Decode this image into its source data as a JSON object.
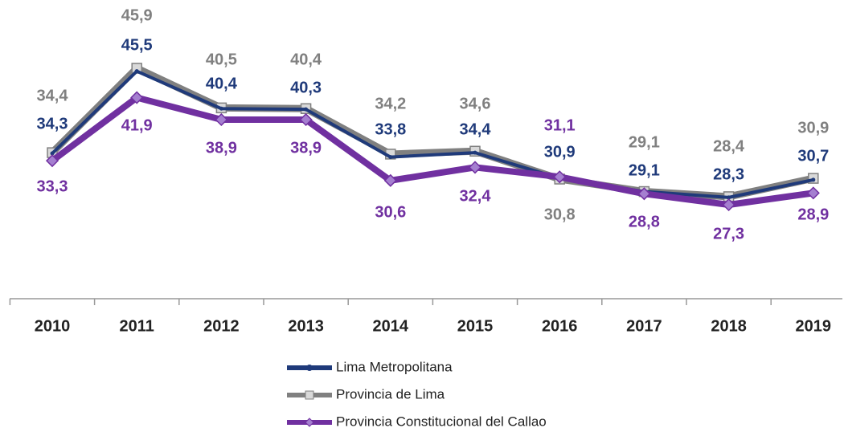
{
  "chart_data": {
    "type": "line",
    "categories": [
      "2010",
      "2011",
      "2012",
      "2013",
      "2014",
      "2015",
      "2016",
      "2017",
      "2018",
      "2019"
    ],
    "series": [
      {
        "name": "Lima Metropolitana",
        "color": "#1f3a7a",
        "values": [
          34.3,
          45.5,
          40.4,
          40.3,
          33.8,
          34.4,
          30.9,
          29.1,
          28.3,
          30.7
        ],
        "value_labels": [
          "34,3",
          "45,5",
          "40,4",
          "40,3",
          "33,8",
          "34,4",
          "30,9",
          "29,1",
          "28,3",
          "30,7"
        ]
      },
      {
        "name": "Provincia de Lima",
        "color": "#808080",
        "values": [
          34.4,
          45.9,
          40.5,
          40.4,
          34.2,
          34.6,
          30.8,
          29.1,
          28.4,
          30.9
        ],
        "value_labels": [
          "34,4",
          "45,9",
          "40,5",
          "40,4",
          "34,2",
          "34,6",
          "30,8",
          "29,1",
          "28,4",
          "30,9"
        ]
      },
      {
        "name": "Provincia Constitucional del Callao",
        "color": "#7030a0",
        "values": [
          33.3,
          41.9,
          38.9,
          38.9,
          30.6,
          32.4,
          31.1,
          28.8,
          27.3,
          28.9
        ],
        "value_labels": [
          "33,3",
          "41,9",
          "38,9",
          "38,9",
          "30,6",
          "32,4",
          "31,1",
          "28,8",
          "27,3",
          "28,9"
        ]
      }
    ]
  }
}
